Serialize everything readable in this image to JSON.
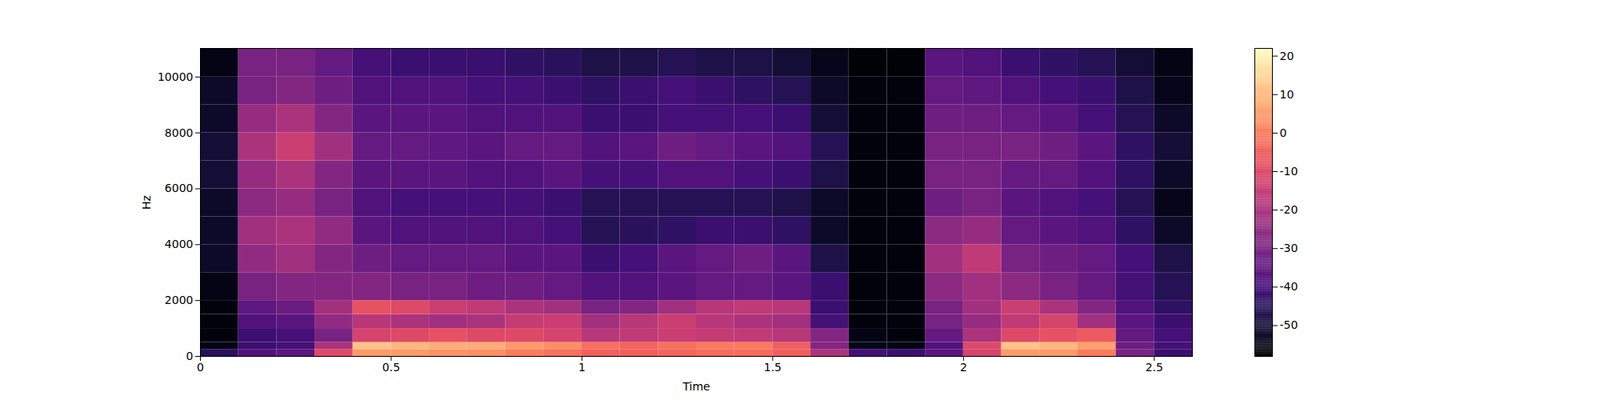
{
  "chart_data": {
    "type": "heatmap",
    "x_label": "Time",
    "y_label": "Hz",
    "xlim": [
      0,
      2.6
    ],
    "ylim": [
      0,
      11025
    ],
    "xticks": [
      0,
      0.5,
      1,
      1.5,
      2,
      2.5
    ],
    "yticks": [
      0,
      2000,
      4000,
      6000,
      8000,
      10000
    ],
    "color": "magma",
    "x_bins": [
      0,
      0.1,
      0.2,
      0.3,
      0.4,
      0.5,
      0.6,
      0.7,
      0.8,
      0.9,
      1.0,
      1.1,
      1.2,
      1.3,
      1.4,
      1.5,
      1.6,
      1.7,
      1.8,
      1.9,
      2.0,
      2.1,
      2.2,
      2.3,
      2.4,
      2.5,
      2.6
    ],
    "y_bins": [
      0,
      250,
      500,
      1000,
      1500,
      2000,
      3000,
      4000,
      5000,
      6000,
      7000,
      8000,
      9000,
      10000,
      11025
    ],
    "values": [
      [
        -45,
        -55,
        -56,
        -56,
        -56,
        -55,
        -52,
        -52,
        -52,
        -50,
        -50,
        -52,
        -52,
        -55
      ],
      [
        -38,
        -42,
        -42,
        -38,
        -35,
        -30,
        -25,
        -22,
        -26,
        -24,
        -20,
        -24,
        -30,
        -30
      ],
      [
        -36,
        -40,
        -40,
        -36,
        -33,
        -28,
        -22,
        -20,
        -24,
        -20,
        -14,
        -20,
        -28,
        -30
      ],
      [
        -10,
        -20,
        -30,
        -25,
        -22,
        -28,
        -28,
        -25,
        -30,
        -28,
        -22,
        -28,
        -32,
        -34
      ],
      [
        5,
        12,
        -12,
        -18,
        -8,
        -28,
        -32,
        -36,
        -38,
        -36,
        -34,
        -36,
        -38,
        -40
      ],
      [
        5,
        10,
        -10,
        -20,
        -10,
        -30,
        -34,
        -38,
        -40,
        -36,
        -34,
        -36,
        -38,
        -42
      ],
      [
        4,
        8,
        -8,
        -22,
        -14,
        -30,
        -34,
        -38,
        -40,
        -36,
        -35,
        -36,
        -38,
        -42
      ],
      [
        3,
        8,
        -10,
        -20,
        -16,
        -32,
        -34,
        -38,
        -40,
        -38,
        -36,
        -38,
        -40,
        -42
      ],
      [
        0,
        5,
        -10,
        -15,
        -20,
        -32,
        -36,
        -38,
        -40,
        -38,
        -34,
        -38,
        -40,
        -44
      ],
      [
        -2,
        3,
        -12,
        -14,
        -22,
        -34,
        -36,
        -40,
        -42,
        -36,
        -34,
        -38,
        -42,
        -45
      ],
      [
        -5,
        -2,
        -18,
        -22,
        -30,
        -38,
        -42,
        -46,
        -46,
        -40,
        -38,
        -42,
        -44,
        -48
      ],
      [
        -5,
        -4,
        -16,
        -18,
        -28,
        -38,
        -40,
        -45,
        -46,
        -40,
        -36,
        -42,
        -42,
        -48
      ],
      [
        -4,
        -2,
        -14,
        -14,
        -22,
        -36,
        -36,
        -44,
        -46,
        -38,
        -32,
        -40,
        -40,
        -46
      ],
      [
        -3,
        0,
        -15,
        -18,
        -18,
        -34,
        -34,
        -42,
        -46,
        -38,
        -34,
        -40,
        -42,
        -48
      ],
      [
        -3,
        0,
        -16,
        -20,
        -16,
        -34,
        -32,
        -42,
        -46,
        -40,
        -36,
        -40,
        -44,
        -48
      ],
      [
        -5,
        -5,
        -18,
        -22,
        -18,
        -36,
        -36,
        -44,
        -48,
        -42,
        -38,
        -42,
        -46,
        -50
      ],
      [
        -20,
        -28,
        -28,
        -40,
        -42,
        -42,
        -48,
        -52,
        -52,
        -48,
        -46,
        -50,
        -52,
        -54
      ],
      [
        -40,
        -54,
        -55,
        -56,
        -56,
        -56,
        -56,
        -56,
        -56,
        -56,
        -56,
        -56,
        -56,
        -57
      ],
      [
        -42,
        -55,
        -56,
        -56,
        -56,
        -56,
        -56,
        -56,
        -56,
        -56,
        -56,
        -56,
        -56,
        -57
      ],
      [
        -36,
        -38,
        -34,
        -30,
        -30,
        -26,
        -22,
        -26,
        -32,
        -30,
        -30,
        -32,
        -34,
        -36
      ],
      [
        -12,
        -10,
        -20,
        -24,
        -22,
        -22,
        -16,
        -24,
        -30,
        -30,
        -30,
        -32,
        -35,
        -38
      ],
      [
        5,
        12,
        -10,
        -16,
        -14,
        -26,
        -30,
        -34,
        -36,
        -34,
        -30,
        -34,
        -38,
        -42
      ],
      [
        5,
        10,
        -8,
        -12,
        -20,
        -30,
        -32,
        -36,
        -38,
        -34,
        -32,
        -36,
        -40,
        -44
      ],
      [
        0,
        6,
        -6,
        -22,
        -28,
        -34,
        -34,
        -38,
        -40,
        -38,
        -36,
        -40,
        -42,
        -46
      ],
      [
        -30,
        -32,
        -34,
        -36,
        -38,
        -40,
        -40,
        -44,
        -46,
        -44,
        -44,
        -46,
        -48,
        -50
      ],
      [
        -42,
        -40,
        -40,
        -42,
        -44,
        -46,
        -48,
        -52,
        -54,
        -52,
        -50,
        -52,
        -54,
        -55
      ]
    ],
    "colorbar": {
      "range": [
        -58,
        22
      ],
      "ticks": [
        -50,
        -40,
        -30,
        -20,
        -10,
        0,
        10,
        20
      ]
    }
  }
}
